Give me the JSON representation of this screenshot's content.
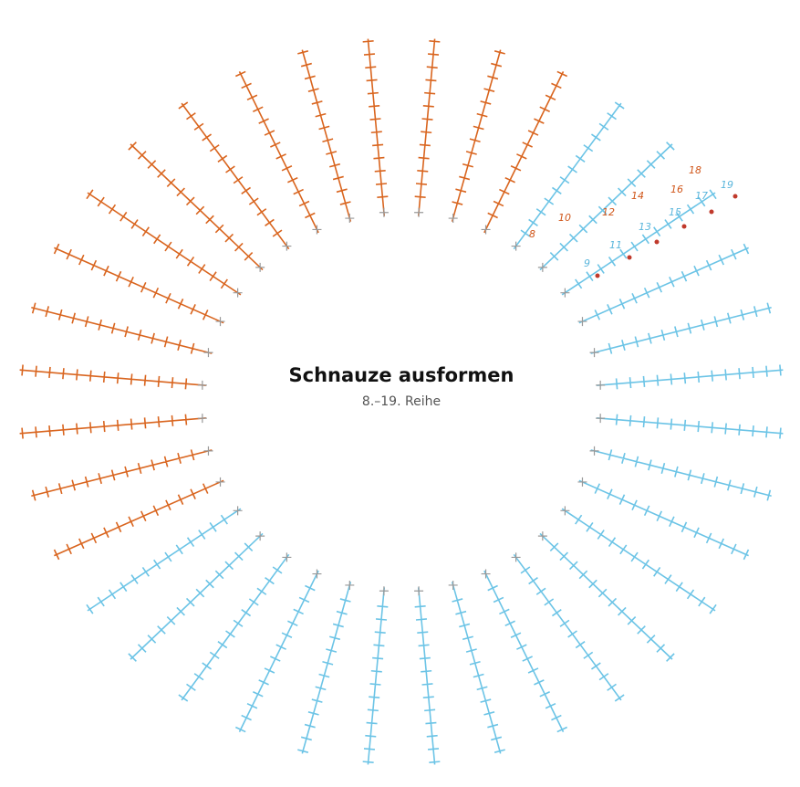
{
  "title": "Schnauze ausformen",
  "subtitle": "8.–19. Reihe",
  "row_labels_orange": [
    "8",
    "10",
    "12",
    "14",
    "16",
    "18"
  ],
  "row_labels_blue": [
    "9",
    "11",
    "13",
    "15",
    "17",
    "19"
  ]
}
